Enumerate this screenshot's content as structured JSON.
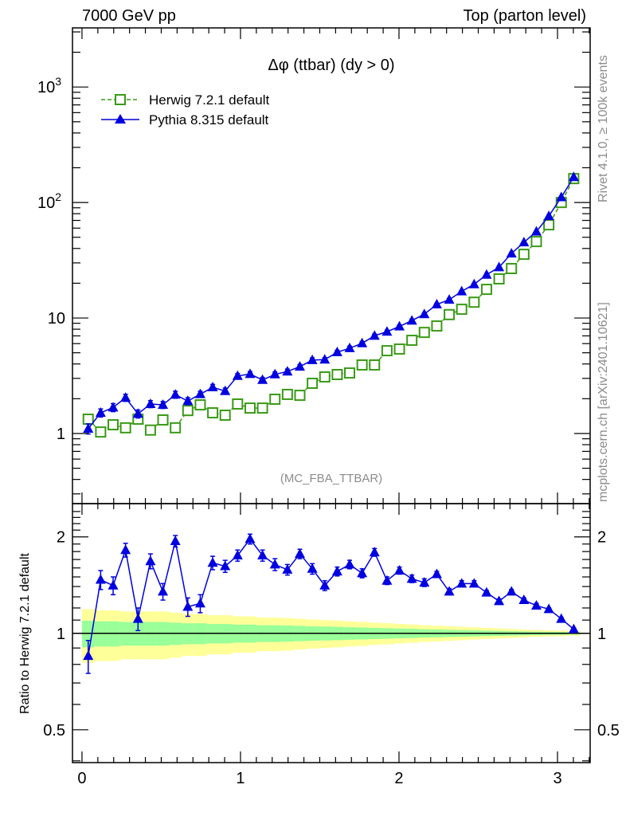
{
  "header": {
    "left": "7000 GeV pp",
    "right": "Top (parton level)"
  },
  "side_text": {
    "rivet": "Rivet 4.1.0, ≥ 100k events",
    "mcplots": "mcplots.cern.ch [arXiv:2401.10621]"
  },
  "analysis_label": "(MC_FBA_TTBAR)",
  "colors": {
    "herwig": "#3a9a17",
    "pythia": "#0000e0",
    "band1": "#99ff99",
    "band2": "#ffff99"
  },
  "chart_data": [
    {
      "type": "line",
      "title": "Δφ (ttbar) (dy > 0)",
      "xlabel": "",
      "ylabel": "",
      "yscale": "log",
      "xlim": [
        -0.06,
        3.206
      ],
      "ylim": [
        0.247,
        3250
      ],
      "y_ticks": [
        {
          "base": "1",
          "exp": ""
        },
        {
          "base": "10",
          "exp": ""
        },
        {
          "base": "10",
          "exp": "2"
        },
        {
          "base": "10",
          "exp": "3"
        }
      ],
      "y_tick_values": [
        1,
        10,
        100,
        1000
      ],
      "legend_position": "top-left",
      "bins": 40,
      "x_range": [
        0,
        3.14159
      ],
      "series": [
        {
          "name": "Herwig 7.2.1 default",
          "style": "dashed-open-square",
          "values": [
            1.33,
            1.03,
            1.19,
            1.12,
            1.33,
            1.07,
            1.31,
            1.12,
            1.58,
            1.77,
            1.51,
            1.44,
            1.8,
            1.66,
            1.66,
            1.98,
            2.18,
            2.14,
            2.72,
            3.09,
            3.24,
            3.34,
            3.92,
            3.92,
            5.21,
            5.38,
            6.41,
            7.5,
            8.53,
            10.7,
            11.9,
            13.7,
            17.7,
            21.8,
            26.8,
            35.6,
            45.9,
            64.1,
            100,
            161
          ]
        },
        {
          "name": "Pythia 8.315 default",
          "style": "solid-filled-triangle",
          "values": [
            1.1,
            1.51,
            1.68,
            2.04,
            1.48,
            1.8,
            1.77,
            2.17,
            1.91,
            2.19,
            2.51,
            2.33,
            3.15,
            3.27,
            2.91,
            3.25,
            3.44,
            3.79,
            4.32,
            4.36,
            5.05,
            5.48,
            6.04,
            7.02,
            7.61,
            8.45,
            9.49,
            10.8,
            13.1,
            14.4,
            17.0,
            19.6,
            23.7,
            27.5,
            36.2,
            45.2,
            56.0,
            76.3,
            111,
            166
          ],
          "rel_errors": [
            0.1,
            0.08,
            0.08,
            0.07,
            0.08,
            0.07,
            0.07,
            0.07,
            0.07,
            0.06,
            0.06,
            0.06,
            0.05,
            0.05,
            0.05,
            0.05,
            0.05,
            0.045,
            0.045,
            0.04,
            0.04,
            0.04,
            0.035,
            0.035,
            0.03,
            0.03,
            0.03,
            0.03,
            0.025,
            0.025,
            0.02,
            0.02,
            0.02,
            0.015,
            0.015,
            0.012,
            0.01,
            0.01,
            0.01,
            0.008
          ]
        }
      ]
    },
    {
      "type": "line",
      "ylabel": "Ratio to Herwig 7.2.1 default",
      "yscale": "log",
      "ylim": [
        0.395,
        2.54
      ],
      "y_ticks": [
        "0.5",
        "1",
        "2"
      ],
      "y_tick_values": [
        0.5,
        1,
        2
      ],
      "x_ticks": [
        "0",
        "1",
        "2",
        "3"
      ],
      "x_tick_values": [
        0,
        1,
        2,
        3
      ],
      "reference_rel_errors": [
        0.095,
        0.09,
        0.09,
        0.085,
        0.085,
        0.085,
        0.085,
        0.08,
        0.075,
        0.075,
        0.07,
        0.07,
        0.065,
        0.065,
        0.06,
        0.06,
        0.058,
        0.055,
        0.052,
        0.05,
        0.048,
        0.045,
        0.043,
        0.04,
        0.038,
        0.035,
        0.033,
        0.03,
        0.028,
        0.026,
        0.024,
        0.022,
        0.02,
        0.018,
        0.016,
        0.014,
        0.012,
        0.011,
        0.01,
        0.008
      ],
      "series": [
        {
          "name": "Pythia 8.315 default / Herwig 7.2.1 default",
          "values": [
            0.85,
            1.47,
            1.41,
            1.82,
            1.11,
            1.68,
            1.35,
            1.94,
            1.21,
            1.24,
            1.66,
            1.62,
            1.75,
            1.97,
            1.75,
            1.64,
            1.58,
            1.77,
            1.59,
            1.41,
            1.56,
            1.64,
            1.54,
            1.79,
            1.46,
            1.57,
            1.48,
            1.44,
            1.53,
            1.35,
            1.43,
            1.43,
            1.34,
            1.26,
            1.35,
            1.27,
            1.22,
            1.19,
            1.11,
            1.03
          ],
          "errors": [
            0.1,
            0.1,
            0.09,
            0.09,
            0.09,
            0.09,
            0.08,
            0.08,
            0.08,
            0.08,
            0.08,
            0.07,
            0.07,
            0.07,
            0.07,
            0.07,
            0.06,
            0.06,
            0.06,
            0.05,
            0.05,
            0.05,
            0.05,
            0.05,
            0.04,
            0.04,
            0.04,
            0.04,
            0.03,
            0.03,
            0.03,
            0.03,
            0.02,
            0.02,
            0.02,
            0.02,
            0.02,
            0.01,
            0.01,
            0.01
          ]
        }
      ]
    }
  ]
}
